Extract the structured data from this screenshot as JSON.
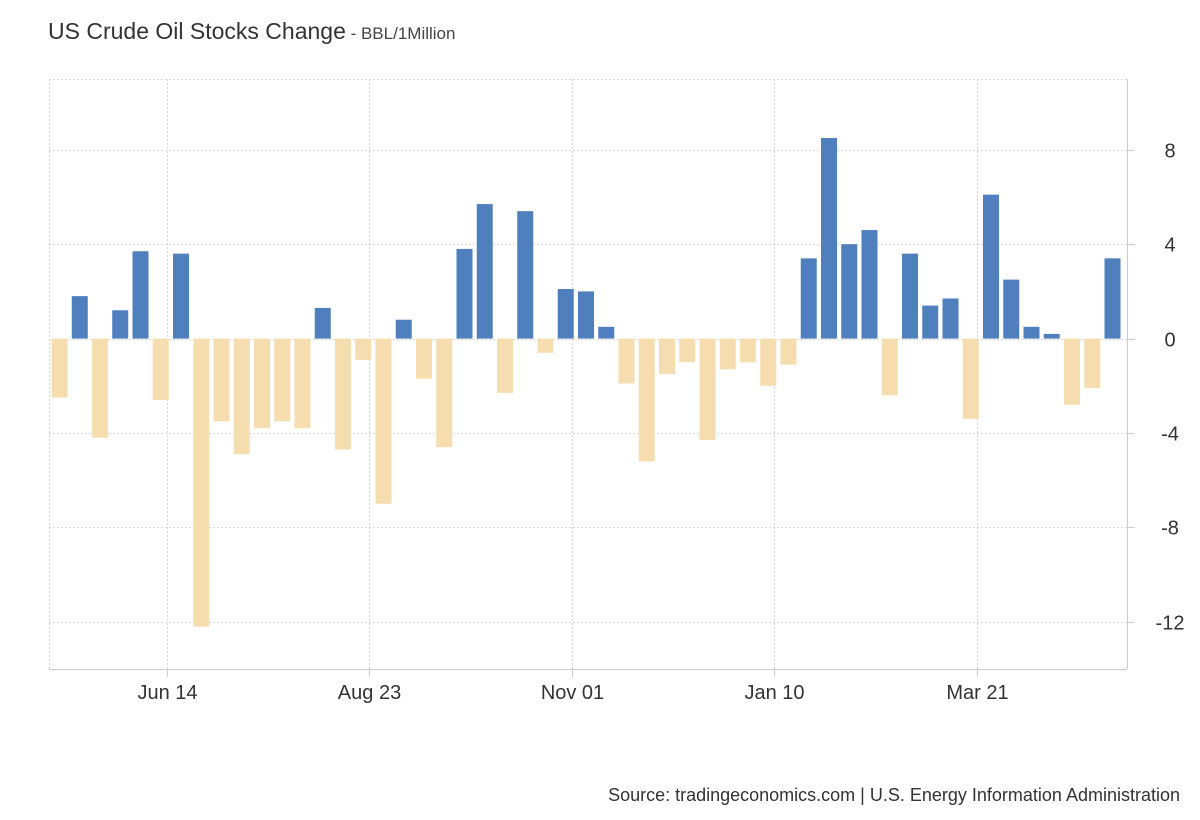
{
  "header": {
    "title": "US Crude Oil Stocks Change",
    "separator": " - ",
    "unit": "BBL/1Million"
  },
  "footer": {
    "source": "Source: tradingeconomics.com | U.S. Energy Information Administration"
  },
  "colors": {
    "positive": "#4f7fbd",
    "negative": "#f5ddb0",
    "grid": "#d8d8d8",
    "axis": "#cccccc"
  },
  "chart_data": {
    "type": "bar",
    "title": "US Crude Oil Stocks Change",
    "ylabel": "BBL/1Million",
    "xlabel": "",
    "ylim": [
      -14,
      11
    ],
    "yticks": [
      8,
      4,
      0,
      -4,
      -8,
      -12
    ],
    "ytick_labels": [
      "8",
      "4",
      "0",
      "-4",
      "-8",
      "-12"
    ],
    "y_axis_side": "right",
    "grid": true,
    "legend": "none",
    "x_ticks": [
      {
        "label": "Jun 14",
        "index": 5.3
      },
      {
        "label": "Aug 23",
        "index": 15.3
      },
      {
        "label": "Nov 01",
        "index": 25.3
      },
      {
        "label": "Jan 10",
        "index": 35.3
      },
      {
        "label": "Mar 21",
        "index": 45.3
      }
    ],
    "values": [
      -2.5,
      1.8,
      -4.2,
      1.2,
      3.7,
      -2.6,
      3.6,
      -12.2,
      -3.5,
      -4.9,
      -3.8,
      -3.5,
      -3.8,
      1.3,
      -4.7,
      -0.9,
      -7.0,
      0.8,
      -1.7,
      -4.6,
      3.8,
      5.7,
      -2.3,
      5.4,
      -0.6,
      2.1,
      2.0,
      0.5,
      -1.9,
      -5.2,
      -1.5,
      -1.0,
      -4.3,
      -1.3,
      -1.0,
      -2.0,
      -1.1,
      3.4,
      8.5,
      4.0,
      4.6,
      -2.4,
      3.6,
      1.4,
      1.7,
      -3.4,
      6.1,
      2.5,
      0.5,
      0.2,
      -2.8,
      -2.1,
      3.4
    ]
  }
}
